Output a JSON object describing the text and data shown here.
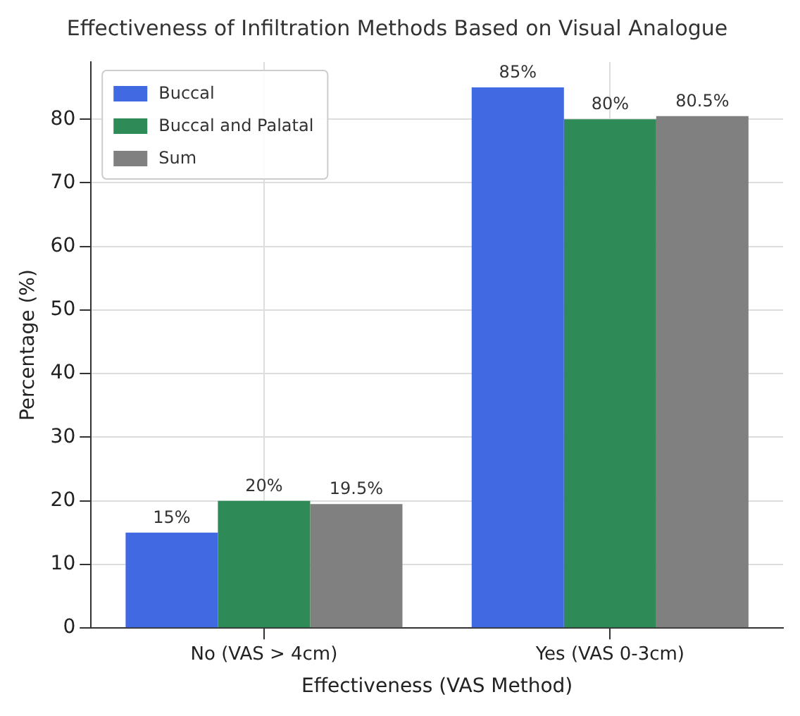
{
  "chart_data": {
    "type": "bar",
    "title": "Effectiveness of Infiltration Methods Based on Visual Analogue",
    "xlabel": "Effectiveness (VAS Method)",
    "ylabel": "Percentage (%)",
    "categories": [
      "No (VAS > 4cm)",
      "Yes (VAS 0-3cm)"
    ],
    "series": [
      {
        "name": "Buccal",
        "color": "#4169e1",
        "values": [
          15,
          85
        ],
        "value_labels": [
          "15%",
          "85%"
        ]
      },
      {
        "name": "Buccal and Palatal",
        "color": "#2e8b57",
        "values": [
          20,
          80
        ],
        "value_labels": [
          "20%",
          "80%"
        ]
      },
      {
        "name": "Sum",
        "color": "#808080",
        "values": [
          19.5,
          80.5
        ],
        "value_labels": [
          "19.5%",
          "80.5%"
        ]
      }
    ],
    "ylim": [
      0,
      89
    ],
    "yticks": [
      0,
      10,
      20,
      30,
      40,
      50,
      60,
      70,
      80
    ],
    "grid": true,
    "legend": "top left"
  }
}
